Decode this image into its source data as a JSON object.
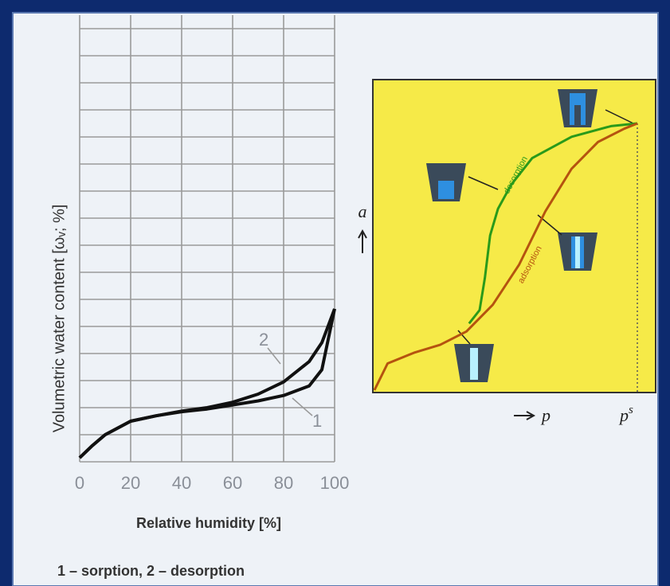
{
  "chart_data": [
    {
      "type": "line",
      "xlabel": "Relative humidity [%]",
      "ylabel": "Volumetric water content [ωᵥ; %]",
      "xlim": [
        0,
        100
      ],
      "ylim": [
        0,
        16.5
      ],
      "xticks": [
        0,
        20,
        40,
        60,
        80,
        100
      ],
      "yticks": [
        0,
        1,
        2,
        3,
        4,
        5,
        6,
        7,
        8,
        9,
        10,
        11,
        12,
        13,
        14,
        15,
        16
      ],
      "grid": true,
      "x": [
        0,
        5,
        10,
        20,
        30,
        40,
        50,
        60,
        70,
        80,
        90,
        95,
        100
      ],
      "series": [
        {
          "label": "1",
          "color": "#111111",
          "values": [
            0.15,
            0.6,
            1.0,
            1.5,
            1.7,
            1.85,
            1.95,
            2.1,
            2.25,
            2.45,
            2.8,
            3.4,
            5.65
          ]
        },
        {
          "label": "2",
          "color": "#111111",
          "values": [
            0.15,
            0.6,
            1.0,
            1.5,
            1.7,
            1.87,
            2.0,
            2.2,
            2.5,
            2.95,
            3.7,
            4.4,
            5.65
          ]
        }
      ]
    },
    {
      "type": "line",
      "xlabel": "p",
      "ylabel": "a",
      "saturation_label": {
        "base": "p",
        "sup": "s"
      },
      "xlim": [
        0,
        1
      ],
      "ylim": [
        0,
        1
      ],
      "series": [
        {
          "name": "desorption",
          "color": "#2a9a1a",
          "x": [
            0.36,
            0.4,
            0.42,
            0.44,
            0.47,
            0.52,
            0.6,
            0.75,
            0.9,
            1
          ],
          "values": [
            0.25,
            0.3,
            0.42,
            0.58,
            0.68,
            0.77,
            0.87,
            0.95,
            0.99,
            1
          ]
        },
        {
          "name": "adsorption",
          "color": "#b5530f",
          "x": [
            0,
            0.05,
            0.15,
            0.25,
            0.35,
            0.45,
            0.55,
            0.65,
            0.75,
            0.85,
            0.95,
            1
          ],
          "values": [
            0,
            0.1,
            0.14,
            0.17,
            0.22,
            0.32,
            0.47,
            0.67,
            0.83,
            0.93,
            0.98,
            1
          ]
        }
      ]
    }
  ],
  "caption": "1 – sorption, 2 – desorption"
}
